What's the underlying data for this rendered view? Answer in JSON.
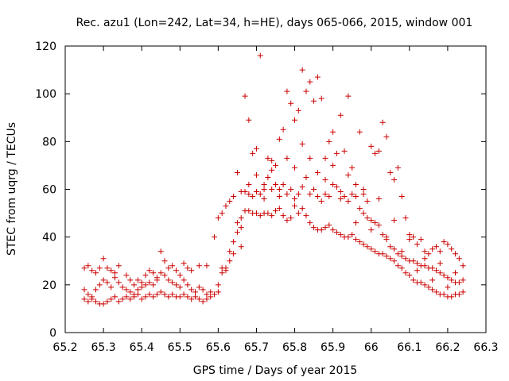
{
  "chart_data": {
    "type": "scatter",
    "title": "Rec. azu1 (Lon=242, Lat=34, h=HE), days 065-066, 2015, window 001",
    "xlabel": "GPS time / Days of year 2015",
    "ylabel": "STEC from uqrg / TECUs",
    "xlim": [
      65.2,
      66.3
    ],
    "ylim": [
      0,
      120
    ],
    "xticks": [
      "65.2",
      "65.3",
      "65.4",
      "65.5",
      "65.6",
      "65.7",
      "65.8",
      "65.9",
      "66",
      "66.1",
      "66.2",
      "66.3"
    ],
    "yticks": [
      "0",
      "20",
      "40",
      "60",
      "80",
      "100",
      "120"
    ],
    "grid": false,
    "marker": "+",
    "marker_color": "#cc0000",
    "series": [
      {
        "name": "",
        "points": [
          [
            65.25,
            27
          ],
          [
            65.26,
            28
          ],
          [
            65.27,
            26
          ],
          [
            65.28,
            25
          ],
          [
            65.29,
            27
          ],
          [
            65.3,
            31
          ],
          [
            65.31,
            27
          ],
          [
            65.32,
            26
          ],
          [
            65.33,
            25
          ],
          [
            65.34,
            28
          ],
          [
            65.36,
            24
          ],
          [
            65.37,
            22
          ],
          [
            65.38,
            20
          ],
          [
            65.39,
            22
          ],
          [
            65.4,
            21
          ],
          [
            65.41,
            24
          ],
          [
            65.42,
            26
          ],
          [
            65.43,
            25
          ],
          [
            65.44,
            23
          ],
          [
            65.45,
            34
          ],
          [
            65.46,
            30
          ],
          [
            65.47,
            27
          ],
          [
            65.48,
            28
          ],
          [
            65.49,
            26
          ],
          [
            65.5,
            24
          ],
          [
            65.51,
            29
          ],
          [
            65.52,
            27
          ],
          [
            65.53,
            26
          ],
          [
            65.55,
            28
          ],
          [
            65.57,
            28
          ],
          [
            65.25,
            18
          ],
          [
            65.26,
            16
          ],
          [
            65.27,
            15
          ],
          [
            65.28,
            18
          ],
          [
            65.29,
            20
          ],
          [
            65.3,
            22
          ],
          [
            65.31,
            21
          ],
          [
            65.32,
            19
          ],
          [
            65.33,
            23
          ],
          [
            65.34,
            21
          ],
          [
            65.35,
            19
          ],
          [
            65.36,
            18
          ],
          [
            65.37,
            17
          ],
          [
            65.38,
            16
          ],
          [
            65.39,
            18
          ],
          [
            65.4,
            19
          ],
          [
            65.41,
            20
          ],
          [
            65.42,
            21
          ],
          [
            65.43,
            20
          ],
          [
            65.44,
            22
          ],
          [
            65.45,
            25
          ],
          [
            65.46,
            24
          ],
          [
            65.47,
            22
          ],
          [
            65.48,
            21
          ],
          [
            65.49,
            20
          ],
          [
            65.5,
            19
          ],
          [
            65.51,
            22
          ],
          [
            65.52,
            20
          ],
          [
            65.53,
            18
          ],
          [
            65.54,
            17
          ],
          [
            65.55,
            19
          ],
          [
            65.56,
            18
          ],
          [
            65.57,
            16
          ],
          [
            65.58,
            17
          ],
          [
            65.25,
            14
          ],
          [
            65.26,
            13
          ],
          [
            65.27,
            14
          ],
          [
            65.28,
            13
          ],
          [
            65.29,
            12
          ],
          [
            65.3,
            12
          ],
          [
            65.31,
            13
          ],
          [
            65.32,
            14
          ],
          [
            65.33,
            15
          ],
          [
            65.34,
            13
          ],
          [
            65.35,
            14
          ],
          [
            65.36,
            15
          ],
          [
            65.37,
            14
          ],
          [
            65.38,
            15
          ],
          [
            65.39,
            16
          ],
          [
            65.4,
            14
          ],
          [
            65.41,
            15
          ],
          [
            65.42,
            16
          ],
          [
            65.43,
            15
          ],
          [
            65.44,
            16
          ],
          [
            65.45,
            17
          ],
          [
            65.46,
            16
          ],
          [
            65.47,
            15
          ],
          [
            65.48,
            16
          ],
          [
            65.49,
            15
          ],
          [
            65.5,
            15
          ],
          [
            65.51,
            16
          ],
          [
            65.52,
            15
          ],
          [
            65.53,
            14
          ],
          [
            65.54,
            15
          ],
          [
            65.55,
            14
          ],
          [
            65.56,
            13
          ],
          [
            65.57,
            14
          ],
          [
            65.58,
            15
          ],
          [
            65.59,
            16
          ],
          [
            65.6,
            17
          ],
          [
            65.59,
            40
          ],
          [
            65.6,
            48
          ],
          [
            65.61,
            50
          ],
          [
            65.62,
            53
          ],
          [
            65.63,
            55
          ],
          [
            65.64,
            57
          ],
          [
            65.65,
            67
          ],
          [
            65.66,
            59
          ],
          [
            65.67,
            99
          ],
          [
            65.68,
            89
          ],
          [
            65.69,
            75
          ],
          [
            65.7,
            77
          ],
          [
            65.71,
            116
          ],
          [
            65.72,
            62
          ],
          [
            65.73,
            73
          ],
          [
            65.74,
            72
          ],
          [
            65.75,
            70
          ],
          [
            65.76,
            81
          ],
          [
            65.77,
            85
          ],
          [
            65.78,
            101
          ],
          [
            65.79,
            96
          ],
          [
            65.8,
            89
          ],
          [
            65.81,
            93
          ],
          [
            65.82,
            110
          ],
          [
            65.83,
            101
          ],
          [
            65.84,
            105
          ],
          [
            65.85,
            97
          ],
          [
            65.86,
            107
          ],
          [
            65.87,
            98
          ],
          [
            65.88,
            73
          ],
          [
            65.89,
            80
          ],
          [
            65.9,
            84
          ],
          [
            65.91,
            75
          ],
          [
            65.92,
            91
          ],
          [
            65.93,
            76
          ],
          [
            65.94,
            99
          ],
          [
            65.95,
            69
          ],
          [
            65.96,
            62
          ],
          [
            65.97,
            84
          ],
          [
            65.98,
            60
          ],
          [
            65.99,
            55
          ],
          [
            66.0,
            78
          ],
          [
            66.01,
            75
          ],
          [
            66.02,
            76
          ],
          [
            66.03,
            88
          ],
          [
            66.04,
            82
          ],
          [
            66.05,
            67
          ],
          [
            66.06,
            64
          ],
          [
            66.07,
            69
          ],
          [
            66.08,
            57
          ],
          [
            66.09,
            48
          ],
          [
            66.1,
            39
          ],
          [
            66.11,
            40
          ],
          [
            66.12,
            37
          ],
          [
            66.13,
            39
          ],
          [
            66.14,
            34
          ],
          [
            66.15,
            33
          ],
          [
            66.16,
            35
          ],
          [
            66.17,
            36
          ],
          [
            66.18,
            34
          ],
          [
            66.19,
            38
          ],
          [
            66.2,
            37
          ],
          [
            66.21,
            35
          ],
          [
            66.22,
            33
          ],
          [
            66.23,
            31
          ],
          [
            66.24,
            28
          ],
          [
            65.61,
            27
          ],
          [
            65.62,
            26
          ],
          [
            65.63,
            34
          ],
          [
            65.64,
            33
          ],
          [
            65.65,
            46
          ],
          [
            65.66,
            36
          ],
          [
            65.67,
            59
          ],
          [
            65.68,
            58
          ],
          [
            65.69,
            57
          ],
          [
            65.7,
            59
          ],
          [
            65.71,
            58
          ],
          [
            65.72,
            60
          ],
          [
            65.73,
            65
          ],
          [
            65.74,
            60
          ],
          [
            65.75,
            62
          ],
          [
            65.76,
            60
          ],
          [
            65.77,
            62
          ],
          [
            65.78,
            58
          ],
          [
            65.79,
            60
          ],
          [
            65.8,
            56
          ],
          [
            65.81,
            58
          ],
          [
            65.82,
            61
          ],
          [
            65.83,
            65
          ],
          [
            65.84,
            58
          ],
          [
            65.85,
            60
          ],
          [
            65.86,
            57
          ],
          [
            65.87,
            55
          ],
          [
            65.88,
            58
          ],
          [
            65.89,
            57
          ],
          [
            65.9,
            62
          ],
          [
            65.91,
            61
          ],
          [
            65.92,
            59
          ],
          [
            65.93,
            57
          ],
          [
            65.94,
            55
          ],
          [
            65.95,
            58
          ],
          [
            65.96,
            57
          ],
          [
            65.97,
            52
          ],
          [
            65.98,
            50
          ],
          [
            65.99,
            48
          ],
          [
            66.0,
            47
          ],
          [
            66.01,
            46
          ],
          [
            66.02,
            45
          ],
          [
            66.03,
            41
          ],
          [
            66.04,
            40
          ],
          [
            66.05,
            36
          ],
          [
            66.06,
            35
          ],
          [
            66.07,
            33
          ],
          [
            66.08,
            32
          ],
          [
            66.09,
            31
          ],
          [
            66.1,
            30
          ],
          [
            66.11,
            30
          ],
          [
            66.12,
            29
          ],
          [
            66.13,
            28
          ],
          [
            66.14,
            28
          ],
          [
            66.15,
            27
          ],
          [
            66.16,
            27
          ],
          [
            66.17,
            26
          ],
          [
            66.18,
            25
          ],
          [
            66.19,
            24
          ],
          [
            66.2,
            23
          ],
          [
            66.21,
            22
          ],
          [
            66.22,
            21
          ],
          [
            66.23,
            21
          ],
          [
            66.24,
            22
          ],
          [
            65.6,
            20
          ],
          [
            65.61,
            25
          ],
          [
            65.62,
            27
          ],
          [
            65.63,
            30
          ],
          [
            65.64,
            38
          ],
          [
            65.65,
            42
          ],
          [
            65.66,
            48
          ],
          [
            65.67,
            51
          ],
          [
            65.68,
            51
          ],
          [
            65.69,
            50
          ],
          [
            65.7,
            50
          ],
          [
            65.71,
            49
          ],
          [
            65.72,
            50
          ],
          [
            65.73,
            50
          ],
          [
            65.74,
            49
          ],
          [
            65.75,
            51
          ],
          [
            65.76,
            52
          ],
          [
            65.77,
            49
          ],
          [
            65.78,
            47
          ],
          [
            65.79,
            48
          ],
          [
            65.8,
            53
          ],
          [
            65.81,
            50
          ],
          [
            65.82,
            52
          ],
          [
            65.83,
            49
          ],
          [
            65.84,
            46
          ],
          [
            65.85,
            44
          ],
          [
            65.86,
            43
          ],
          [
            65.87,
            43
          ],
          [
            65.88,
            44
          ],
          [
            65.89,
            45
          ],
          [
            65.9,
            43
          ],
          [
            65.91,
            42
          ],
          [
            65.92,
            41
          ],
          [
            65.93,
            40
          ],
          [
            65.94,
            40
          ],
          [
            65.95,
            41
          ],
          [
            65.96,
            39
          ],
          [
            65.97,
            38
          ],
          [
            65.98,
            37
          ],
          [
            65.99,
            36
          ],
          [
            66.0,
            35
          ],
          [
            66.01,
            34
          ],
          [
            66.02,
            33
          ],
          [
            66.03,
            33
          ],
          [
            66.04,
            32
          ],
          [
            66.05,
            31
          ],
          [
            66.06,
            30
          ],
          [
            66.07,
            28
          ],
          [
            66.08,
            27
          ],
          [
            66.09,
            25
          ],
          [
            66.1,
            24
          ],
          [
            66.11,
            22
          ],
          [
            66.12,
            21
          ],
          [
            66.13,
            21
          ],
          [
            66.14,
            20
          ],
          [
            66.15,
            19
          ],
          [
            66.16,
            18
          ],
          [
            66.17,
            17
          ],
          [
            66.18,
            16
          ],
          [
            66.19,
            16
          ],
          [
            66.2,
            15
          ],
          [
            66.21,
            15
          ],
          [
            66.22,
            16
          ],
          [
            66.23,
            16
          ],
          [
            66.24,
            17
          ],
          [
            65.66,
            44
          ],
          [
            65.7,
            66
          ],
          [
            65.74,
            68
          ],
          [
            65.78,
            73
          ],
          [
            65.82,
            79
          ],
          [
            65.86,
            67
          ],
          [
            65.9,
            70
          ],
          [
            65.94,
            66
          ],
          [
            65.98,
            58
          ],
          [
            66.02,
            56
          ],
          [
            66.06,
            47
          ],
          [
            66.1,
            41
          ],
          [
            66.14,
            31
          ],
          [
            66.18,
            29
          ],
          [
            66.22,
            25
          ],
          [
            65.68,
            62
          ],
          [
            65.72,
            56
          ],
          [
            65.76,
            57
          ],
          [
            65.8,
            69
          ],
          [
            65.84,
            73
          ],
          [
            65.88,
            64
          ],
          [
            65.92,
            56
          ],
          [
            65.96,
            46
          ],
          [
            66.0,
            43
          ],
          [
            66.04,
            39
          ],
          [
            66.08,
            34
          ],
          [
            66.12,
            26
          ],
          [
            66.16,
            22
          ],
          [
            66.2,
            19
          ]
        ]
      }
    ]
  }
}
